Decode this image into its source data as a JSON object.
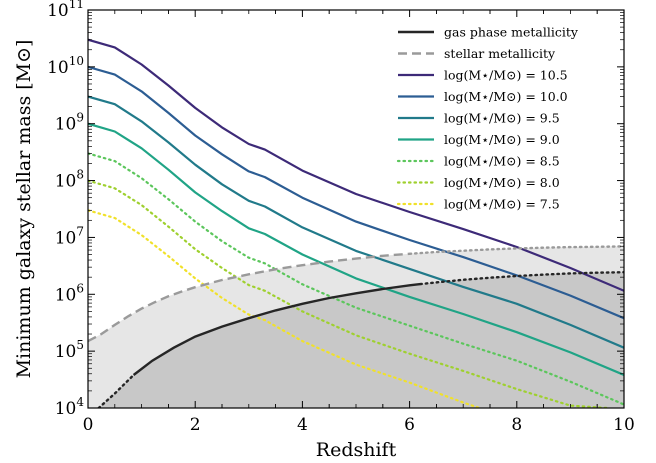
{
  "chart_data": {
    "type": "line",
    "xlabel": "Redshift",
    "ylabel": "Minimum galaxy stellar mass [M⊙]",
    "xlim": [
      0,
      10
    ],
    "ylim": [
      10000,
      100000000000
    ],
    "yscale": "log",
    "x_ticks": [
      {
        "value": 0,
        "label": "0"
      },
      {
        "value": 2,
        "label": "2"
      },
      {
        "value": 4,
        "label": "4"
      },
      {
        "value": 6,
        "label": "6"
      },
      {
        "value": 8,
        "label": "8"
      },
      {
        "value": 10,
        "label": "10"
      }
    ],
    "y_ticks": [
      {
        "value": 10000,
        "mant": "10",
        "exp": "4"
      },
      {
        "value": 100000,
        "mant": "10",
        "exp": "5"
      },
      {
        "value": 1000000,
        "mant": "10",
        "exp": "6"
      },
      {
        "value": 10000000,
        "mant": "10",
        "exp": "7"
      },
      {
        "value": 100000000,
        "mant": "10",
        "exp": "8"
      },
      {
        "value": 1000000000,
        "mant": "10",
        "exp": "9"
      },
      {
        "value": 10000000000,
        "mant": "10",
        "exp": "10"
      },
      {
        "value": 100000000000,
        "mant": "10",
        "exp": "11"
      }
    ],
    "legend_position": "top-right",
    "grid": false,
    "limits": [
      {
        "name": "gas phase metallicity",
        "color": "#262626",
        "dash": "solid",
        "fill": "#c8c8c8",
        "x": [
          0.2,
          0.5,
          0.85,
          1.2,
          1.6,
          2,
          2.5,
          3,
          3.5,
          4,
          4.5,
          5,
          5.5,
          6,
          6.5,
          7,
          7.5,
          8,
          8.5,
          9,
          9.5,
          10
        ],
        "y": [
          10000,
          18000,
          38000,
          68000,
          115000,
          180000,
          270000,
          380000,
          520000,
          680000,
          860000,
          1040000,
          1240000,
          1440000,
          1620000,
          1800000,
          1960000,
          2100000,
          2220000,
          2330000,
          2400000,
          2450000
        ],
        "dotted_ranges": [
          [
            0.2,
            0.85
          ],
          [
            6.2,
            10
          ]
        ]
      },
      {
        "name": "stellar metallicity",
        "color": "#9a9a9a",
        "dash": "dashed",
        "fill": "#e6e6e6",
        "x": [
          0,
          0.25,
          0.5,
          0.75,
          1,
          1.25,
          1.5,
          1.75,
          2,
          2.5,
          3,
          3.5,
          4,
          4.5,
          5,
          5.5,
          6,
          6.5,
          7,
          7.5,
          8,
          8.5,
          9,
          9.5,
          10
        ],
        "y": [
          150000,
          200000,
          290000,
          410000,
          560000,
          730000,
          920000,
          1120000,
          1330000,
          1780000,
          2250000,
          2750000,
          3250000,
          3750000,
          4250000,
          4750000,
          5150000,
          5550000,
          5850000,
          6150000,
          6400000,
          6600000,
          6750000,
          6850000,
          6950000
        ],
        "dotted_ranges": [
          [
            6,
            10
          ]
        ]
      }
    ],
    "series": [
      {
        "name": "log(M⋆/M⊙) = 10.5",
        "color": "#3d2a78",
        "dash": "solid",
        "x": [
          0,
          0.5,
          1,
          1.5,
          2,
          2.5,
          3,
          3.3,
          4,
          5,
          6,
          7,
          8,
          9,
          10
        ],
        "y": [
          30000000000,
          22000000000,
          11000000000,
          4700000000,
          1900000000,
          860000000,
          440000000,
          350000000,
          150000000,
          58000000,
          28000000,
          14000000,
          6800000,
          2900000,
          1150000
        ]
      },
      {
        "name": "log(M⋆/M⊙) = 10.0",
        "color": "#2c5d93",
        "dash": "solid",
        "x": [
          0,
          0.5,
          1,
          1.5,
          2,
          2.5,
          3,
          3.3,
          4,
          5,
          6,
          7,
          8,
          9,
          10
        ],
        "y": [
          10000000000,
          7300000000,
          3700000000,
          1550000000,
          620000000,
          290000000,
          145000000,
          115000000,
          50000000,
          19000000,
          9000000,
          4500000,
          2150000,
          950000,
          380000
        ]
      },
      {
        "name": "log(M⋆/M⊙) = 9.5",
        "color": "#217a8a",
        "dash": "solid",
        "x": [
          0,
          0.5,
          1,
          1.5,
          2,
          2.5,
          3,
          3.3,
          4,
          5,
          6,
          7,
          8,
          9,
          10
        ],
        "y": [
          3000000000,
          2200000000,
          1100000000,
          470000000,
          190000000,
          86000000,
          44000000,
          35000000,
          15000000,
          5800000,
          2800000,
          1350000,
          680000,
          290000,
          115000
        ]
      },
      {
        "name": "log(M⋆/M⊙) = 9.0",
        "color": "#20a486",
        "dash": "solid",
        "x": [
          0,
          0.5,
          1,
          1.5,
          2,
          2.5,
          3,
          3.3,
          4,
          5,
          6,
          7,
          8,
          9,
          10
        ],
        "y": [
          1000000000,
          730000000,
          370000000,
          155000000,
          62000000,
          29000000,
          14500000,
          11500000,
          5000000,
          1900000,
          900000,
          450000,
          215000,
          95000,
          38000
        ]
      },
      {
        "name": "log(M⋆/M⊙) = 8.5",
        "color": "#5cc65c",
        "dash": "dotted",
        "x": [
          0,
          0.5,
          1,
          1.5,
          2,
          2.5,
          3,
          3.3,
          4,
          5,
          6,
          7,
          8,
          9,
          10
        ],
        "y": [
          300000000,
          220000000,
          110000000,
          47000000,
          19000000,
          8600000,
          4400000,
          3500000,
          1500000,
          580000,
          280000,
          135000,
          68000,
          29000,
          11500
        ]
      },
      {
        "name": "log(M⋆/M⊙) = 8.0",
        "color": "#9fd02f",
        "dash": "dotted",
        "x": [
          0,
          0.5,
          1,
          1.5,
          2,
          2.5,
          3,
          3.3,
          4,
          5,
          6,
          7,
          8,
          9,
          9.7
        ],
        "y": [
          100000000,
          73000000,
          37000000,
          15500000,
          6200000,
          2900000,
          1450000,
          1150000,
          500000,
          190000,
          90000,
          45000,
          21500,
          11000,
          10000
        ]
      },
      {
        "name": "log(M⋆/M⊙) = 7.5",
        "color": "#f0e12a",
        "dash": "dotted",
        "x": [
          0,
          0.5,
          1,
          1.5,
          2,
          2.5,
          3,
          3.3,
          4,
          5,
          6,
          7,
          7.3
        ],
        "y": [
          30000000,
          22000000,
          11000000,
          4700000,
          1900000,
          860000,
          440000,
          350000,
          150000,
          58000,
          28000,
          12500,
          10000
        ]
      }
    ]
  }
}
